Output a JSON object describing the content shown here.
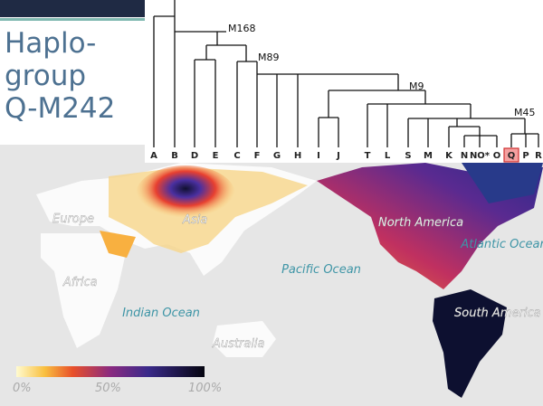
{
  "title": {
    "lines": [
      "Haplo-",
      "group",
      "Q-M242"
    ]
  },
  "tree": {
    "leaves": [
      "A",
      "B",
      "D",
      "E",
      "C",
      "F",
      "G",
      "H",
      "I",
      "J",
      "T",
      "L",
      "S",
      "M",
      "K",
      "N",
      "NO*",
      "O",
      "Q",
      "P",
      "R"
    ],
    "nodes": [
      "M168",
      "M89",
      "M9",
      "M45"
    ]
  },
  "map": {
    "labels": [
      "Europe",
      "Asia",
      "Africa",
      "Indian Ocean",
      "Australia",
      "Pacific Ocean",
      "North America",
      "Atlantic Ocean",
      "South America"
    ]
  },
  "legend": {
    "labels": [
      "0%",
      "50%",
      "100%"
    ]
  }
}
